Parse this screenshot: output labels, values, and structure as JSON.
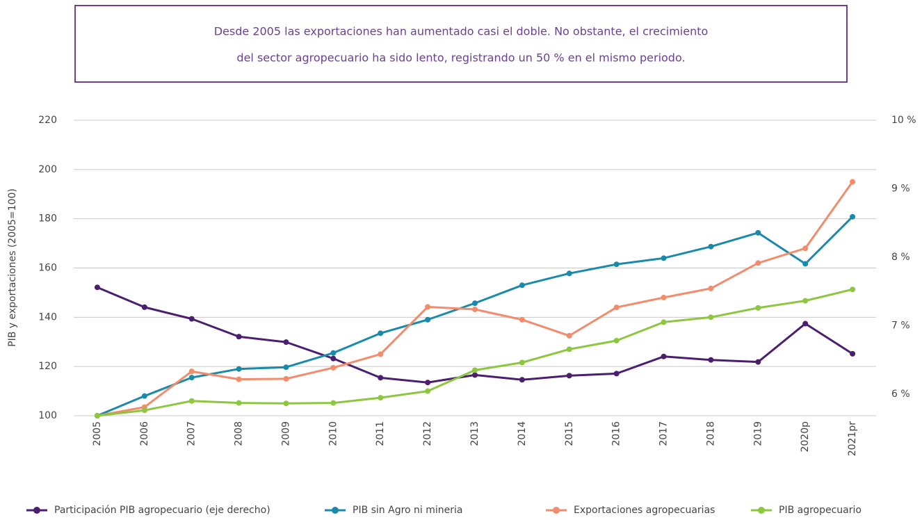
{
  "chart_data": {
    "type": "line",
    "title": [
      "Desde 2005 las exportaciones han aumentado casi el doble. No obstante, el crecimiento",
      "del sector agropecuario ha sido lento, registrando un 50 % en el mismo periodo."
    ],
    "y_label": "PIB y exportaciones (2005=100)",
    "categories": [
      "2005",
      "2006",
      "2007",
      "2008",
      "2009",
      "2010",
      "2011",
      "2012",
      "2013",
      "2014",
      "2015",
      "2016",
      "2017",
      "2018",
      "2019",
      "2020p",
      "2021pr"
    ],
    "series": [
      {
        "name": "Participación PIB agropecuario (eje derecho)",
        "color": "#4b1f6f",
        "axis": "y2",
        "values": [
          7.56,
          7.27,
          7.1,
          6.84,
          6.76,
          6.52,
          6.24,
          6.17,
          6.28,
          6.21,
          6.27,
          6.3,
          6.55,
          6.5,
          6.47,
          7.03,
          6.59
        ]
      },
      {
        "name": "PIB sin Agro ni mineria",
        "color": "#1a8aaa",
        "values": [
          100,
          108,
          115.5,
          119,
          119.7,
          125.5,
          133.5,
          139,
          145.7,
          153,
          157.8,
          161.5,
          164,
          168.7,
          174.3,
          161.7,
          180.8
        ]
      },
      {
        "name": "Exportaciones agropecuarias",
        "color": "#f28c6c",
        "values": [
          100,
          103.5,
          118,
          114.8,
          115,
          119.5,
          125,
          144.2,
          143.2,
          139,
          132.5,
          144,
          148,
          151.7,
          162,
          168,
          195
        ]
      },
      {
        "name": "PIB agropecuario",
        "color": "#8dc63f",
        "values": [
          100,
          102.2,
          106,
          105.2,
          105,
          105.2,
          107.3,
          110,
          118.5,
          121.6,
          127,
          130.5,
          138,
          140,
          143.8,
          146.7,
          151.3
        ]
      }
    ],
    "ylim": [
      100,
      220
    ],
    "yticks": [
      100,
      120,
      140,
      160,
      180,
      200,
      220
    ],
    "y2lim": [
      5.685,
      10
    ],
    "y2ticks": [
      {
        "value": 6,
        "label": "6 %"
      },
      {
        "value": 7,
        "label": "7 %"
      },
      {
        "value": 8,
        "label": "8 %"
      },
      {
        "value": 9,
        "label": "9 %"
      },
      {
        "value": 10,
        "label": "10 %"
      }
    ],
    "grid": true,
    "legend": "bottom"
  }
}
